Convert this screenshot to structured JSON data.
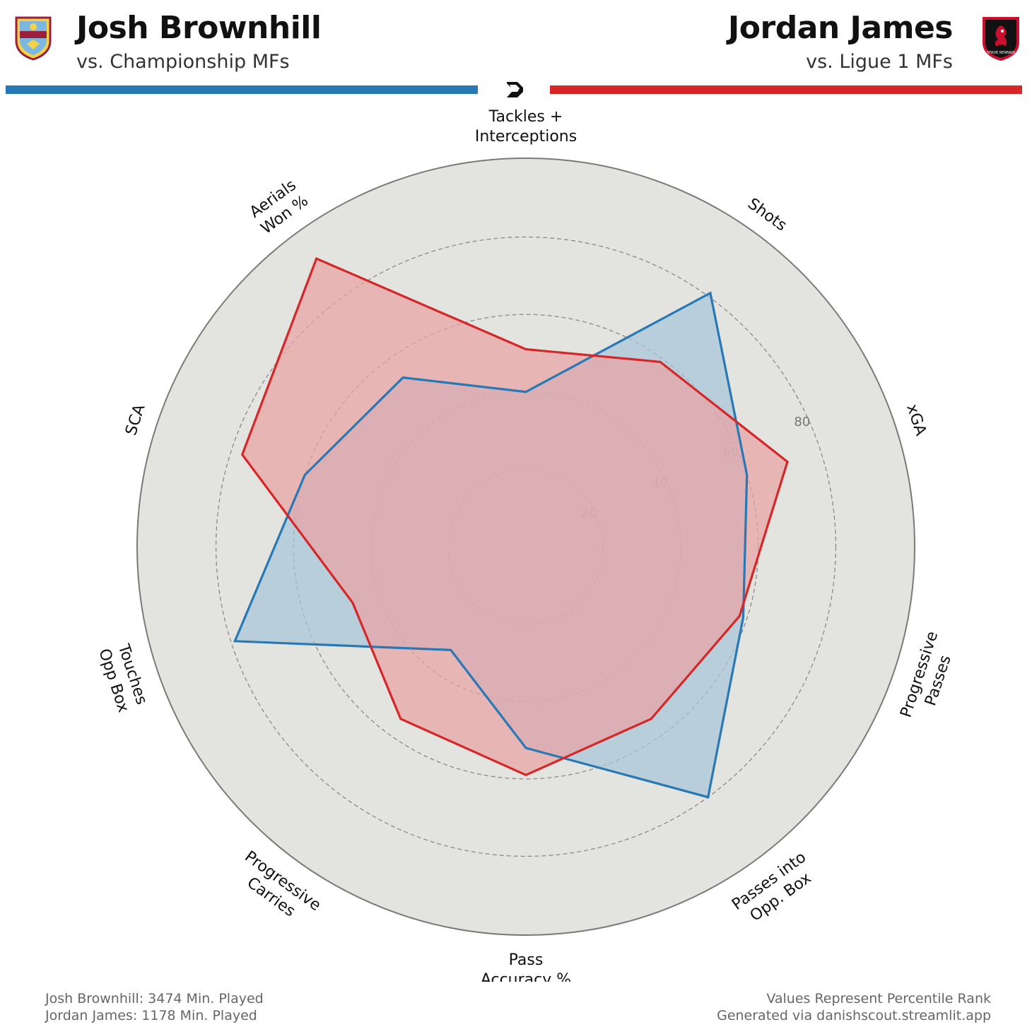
{
  "header": {
    "left": {
      "name": "Josh Brownhill",
      "comparison": "vs. Championship MFs",
      "color": "#2878b5",
      "crest_icon": "burnley-crest-icon"
    },
    "right": {
      "name": "Jordan James",
      "comparison": "vs. Ligue 1 MFs",
      "color": "#d62728",
      "crest_icon": "stade-rennais-crest-icon",
      "crest_text": "STADE RENNAIS"
    },
    "logo_icon": "danishscout-logo-icon"
  },
  "chart_data": {
    "type": "radar",
    "categories": [
      "Tackles + Interceptions",
      "Shots",
      "xGA",
      "Progressive Passes",
      "Passes into Opp. Box",
      "Pass Accuracy %",
      "Progressive Carries",
      "Touches Opp Box",
      "SCA",
      "Aerials Won %"
    ],
    "category_lines": [
      [
        "Tackles +",
        "Interceptions"
      ],
      [
        "Shots"
      ],
      [
        "xGA"
      ],
      [
        "Progressive",
        "Passes"
      ],
      [
        "Passes into",
        "Opp. Box"
      ],
      [
        "Pass",
        "Accuracy %"
      ],
      [
        "Progressive",
        "Carries"
      ],
      [
        "Touches",
        "Opp Box"
      ],
      [
        "SCA"
      ],
      [
        "Aerials",
        "Won %"
      ]
    ],
    "rlim": [
      0,
      100
    ],
    "ring_ticks": [
      20,
      40,
      60,
      80
    ],
    "grid": true,
    "series": [
      {
        "name": "Josh Brownhill",
        "color": "#2878b5",
        "fill": "#a9c6d9",
        "values": [
          40,
          81,
          60,
          59,
          80,
          52,
          33,
          79,
          60,
          54
        ]
      },
      {
        "name": "Jordan James",
        "color": "#d62728",
        "fill": "#e8a3a3",
        "values": [
          51,
          59,
          71,
          58,
          55,
          59,
          55,
          47,
          77,
          92
        ]
      }
    ]
  },
  "footer": {
    "left_line1": "Josh Brownhill: 3474 Min. Played",
    "left_line2": "Jordan James: 1178 Min. Played",
    "right_line1": "Values Represent Percentile Rank",
    "right_line2": "Generated via danishscout.streamlit.app"
  }
}
